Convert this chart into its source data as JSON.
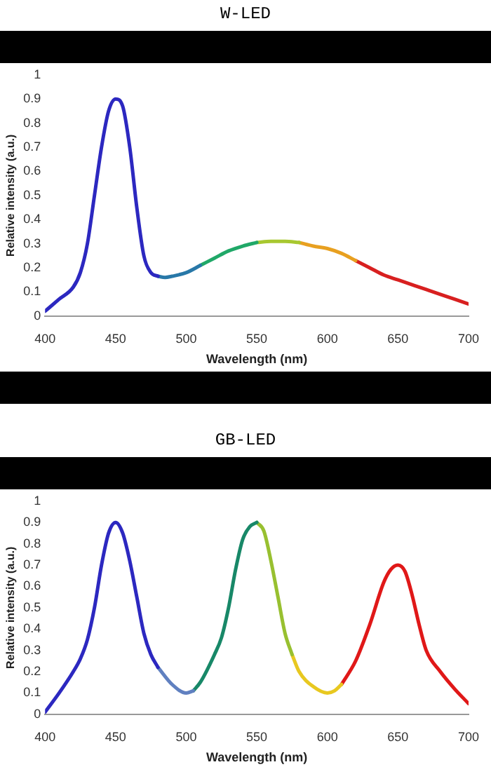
{
  "chart_data": [
    {
      "type": "line",
      "title": "W-LED",
      "xlabel": "Wavelength (nm)",
      "ylabel": "Relative intensity (a.u.)",
      "xlim": [
        400,
        700
      ],
      "xticks": [
        400,
        450,
        500,
        550,
        600,
        650,
        700
      ],
      "ylim": [
        0,
        1
      ],
      "yticks": [
        0,
        0.1,
        0.2,
        0.3,
        0.4,
        0.5,
        0.6,
        0.7,
        0.8,
        0.9,
        1
      ],
      "grid": false,
      "legend": false,
      "marker": "none",
      "line_style": "solid",
      "series": [
        {
          "color": "#2c28c0",
          "x": [
            400,
            410,
            420,
            425,
            430,
            435,
            440,
            445,
            450,
            455,
            460,
            465,
            470,
            475,
            480
          ],
          "values": [
            0.02,
            0.07,
            0.12,
            0.18,
            0.3,
            0.5,
            0.7,
            0.85,
            0.9,
            0.87,
            0.7,
            0.45,
            0.25,
            0.18,
            0.165
          ]
        },
        {
          "color": "#2878a8",
          "x": [
            480,
            485,
            490,
            500,
            510
          ],
          "values": [
            0.165,
            0.16,
            0.165,
            0.18,
            0.21
          ]
        },
        {
          "color": "#20a868",
          "x": [
            510,
            520,
            530,
            540,
            550
          ],
          "values": [
            0.21,
            0.24,
            0.27,
            0.29,
            0.305
          ]
        },
        {
          "color": "#a8c830",
          "x": [
            550,
            560,
            570,
            580
          ],
          "values": [
            0.305,
            0.31,
            0.31,
            0.305
          ]
        },
        {
          "color": "#e8a020",
          "x": [
            580,
            590,
            600,
            610,
            620
          ],
          "values": [
            0.305,
            0.29,
            0.28,
            0.26,
            0.23
          ]
        },
        {
          "color": "#d82020",
          "x": [
            620,
            630,
            640,
            650,
            660,
            670,
            680,
            690,
            700
          ],
          "values": [
            0.23,
            0.2,
            0.17,
            0.15,
            0.13,
            0.11,
            0.09,
            0.07,
            0.05
          ]
        }
      ]
    },
    {
      "type": "line",
      "title": "GB-LED",
      "xlabel": "Wavelength (nm)",
      "ylabel": "Relative intensity (a.u.)",
      "xlim": [
        400,
        700
      ],
      "xticks": [
        400,
        450,
        500,
        550,
        600,
        650,
        700
      ],
      "ylim": [
        0,
        1
      ],
      "yticks": [
        0,
        0.1,
        0.2,
        0.3,
        0.4,
        0.5,
        0.6,
        0.7,
        0.8,
        0.9,
        1
      ],
      "grid": false,
      "legend": false,
      "marker": "none",
      "line_style": "solid",
      "series": [
        {
          "color": "#2c28c0",
          "x": [
            400,
            410,
            420,
            425,
            430,
            435,
            440,
            445,
            450,
            455,
            460,
            465,
            470,
            475,
            480
          ],
          "values": [
            0.01,
            0.1,
            0.2,
            0.26,
            0.35,
            0.5,
            0.7,
            0.85,
            0.9,
            0.85,
            0.72,
            0.55,
            0.38,
            0.28,
            0.22
          ]
        },
        {
          "color": "#6080c0",
          "x": [
            480,
            490,
            500,
            505
          ],
          "values": [
            0.22,
            0.14,
            0.1,
            0.11
          ]
        },
        {
          "color": "#188868",
          "x": [
            505,
            510,
            520,
            525,
            530,
            535,
            540,
            545,
            550
          ],
          "values": [
            0.11,
            0.15,
            0.28,
            0.36,
            0.5,
            0.68,
            0.82,
            0.88,
            0.9
          ]
        },
        {
          "color": "#98c030",
          "x": [
            550,
            555,
            560,
            565,
            570,
            575
          ],
          "values": [
            0.9,
            0.86,
            0.72,
            0.55,
            0.38,
            0.28
          ]
        },
        {
          "color": "#e8c820",
          "x": [
            575,
            580,
            590,
            600,
            605,
            610
          ],
          "values": [
            0.28,
            0.2,
            0.13,
            0.1,
            0.11,
            0.14
          ]
        },
        {
          "color": "#e01818",
          "x": [
            610,
            620,
            630,
            640,
            645,
            650,
            655,
            660,
            665,
            670,
            680,
            690,
            700
          ],
          "values": [
            0.14,
            0.25,
            0.42,
            0.62,
            0.68,
            0.7,
            0.67,
            0.56,
            0.42,
            0.3,
            0.2,
            0.12,
            0.05
          ]
        }
      ]
    }
  ]
}
